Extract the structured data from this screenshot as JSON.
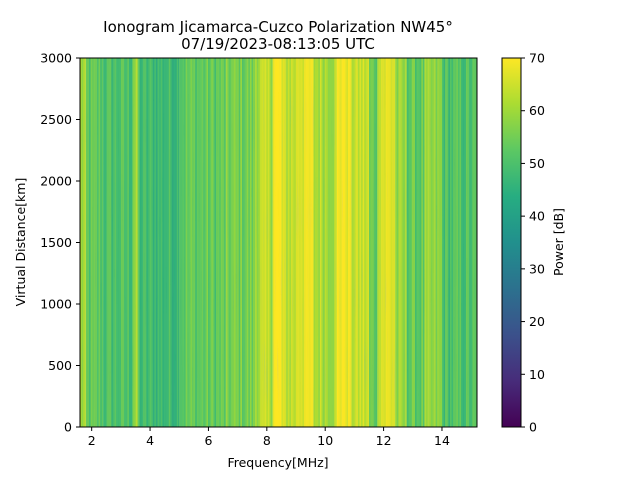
{
  "chart_data": {
    "type": "heatmap",
    "title": [
      "Ionogram Jicamarca-Cuzco Polarization NW45°",
      "07/19/2023-08:13:05 UTC"
    ],
    "xlabel": "Frequency[MHz]",
    "ylabel": "Virtual Distance[km]",
    "xlim": [
      1.6,
      15.2
    ],
    "ylim": [
      0,
      3000
    ],
    "x_ticks": [
      2,
      4,
      6,
      8,
      10,
      12,
      14
    ],
    "x_tick_labels": [
      "2",
      "4",
      "6",
      "8",
      "10",
      "12",
      "14"
    ],
    "y_ticks": [
      0,
      500,
      1000,
      1500,
      2000,
      2500,
      3000
    ],
    "y_tick_labels": [
      "0",
      "500",
      "1000",
      "1500",
      "2000",
      "2500",
      "3000"
    ],
    "colorbar": {
      "label": "Power [dB]",
      "range": [
        0,
        70
      ],
      "ticks": [
        0,
        10,
        20,
        30,
        40,
        50,
        60,
        70
      ],
      "tick_labels": [
        "0",
        "10",
        "20",
        "30",
        "40",
        "50",
        "60",
        "70"
      ],
      "colormap": "viridis"
    },
    "grid": false,
    "bands": [
      {
        "x": [
          1.6,
          1.8
        ],
        "power_db": 60
      },
      {
        "x": [
          1.8,
          2.4
        ],
        "power_db": 52
      },
      {
        "x": [
          2.4,
          3.4
        ],
        "power_db": 50
      },
      {
        "x": [
          3.4,
          3.6
        ],
        "power_db": 58
      },
      {
        "x": [
          3.6,
          5.0
        ],
        "power_db": 48
      },
      {
        "x": [
          5.0,
          6.6
        ],
        "power_db": 53
      },
      {
        "x": [
          6.6,
          7.6
        ],
        "power_db": 55
      },
      {
        "x": [
          7.6,
          8.2
        ],
        "power_db": 62
      },
      {
        "x": [
          8.2,
          8.5
        ],
        "power_db": 70
      },
      {
        "x": [
          8.5,
          9.0
        ],
        "power_db": 64
      },
      {
        "x": [
          9.0,
          9.6
        ],
        "power_db": 68
      },
      {
        "x": [
          9.6,
          10.4
        ],
        "power_db": 62
      },
      {
        "x": [
          10.4,
          10.9
        ],
        "power_db": 70
      },
      {
        "x": [
          10.9,
          11.5
        ],
        "power_db": 64
      },
      {
        "x": [
          11.5,
          11.8
        ],
        "power_db": 54
      },
      {
        "x": [
          11.8,
          12.4
        ],
        "power_db": 67
      },
      {
        "x": [
          12.4,
          12.8
        ],
        "power_db": 58
      },
      {
        "x": [
          12.8,
          13.4
        ],
        "power_db": 53
      },
      {
        "x": [
          13.4,
          14.0
        ],
        "power_db": 57
      },
      {
        "x": [
          14.0,
          15.2
        ],
        "power_db": 50
      }
    ]
  }
}
